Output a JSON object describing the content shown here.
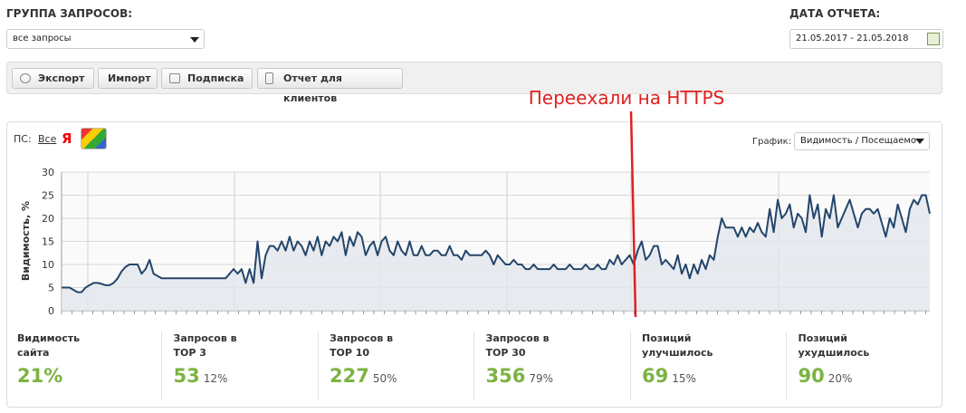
{
  "header": {
    "group_label": "ГРУППА ЗАПРОСОВ:",
    "group_value": "все запросы",
    "date_label": "ДАТА ОТЧЕТА:",
    "date_value": "21.05.2017 - 21.05.2018"
  },
  "toolbar": {
    "buttons": [
      "Экспорт",
      "Импорт",
      "Подписка",
      "Отчет для клиентов"
    ]
  },
  "annotation": "Переехали на HTTPS",
  "filters": {
    "ps_label": "ПС:",
    "all": "Все",
    "yandex": "Я",
    "graph_label": "График:",
    "graph_value": "Видимость / Посещаемо"
  },
  "chart_data": {
    "type": "line",
    "ylabel": "Видимость, %",
    "ylim": [
      0,
      30
    ],
    "yticks": [
      0,
      5,
      10,
      15,
      20,
      25,
      30
    ],
    "grid": true,
    "series": [
      {
        "color": "#24456a",
        "values": [
          5,
          5,
          5,
          4.5,
          4,
          4,
          5,
          5.5,
          6,
          6,
          5.8,
          5.5,
          5.5,
          6,
          7,
          8.5,
          9.5,
          10,
          10,
          10,
          8,
          9,
          11,
          8,
          7.5,
          7,
          7,
          7,
          7,
          7,
          7,
          7,
          7,
          7,
          7,
          7,
          7,
          7,
          7,
          7,
          7,
          7,
          8,
          9,
          8,
          9,
          6,
          9,
          6,
          15,
          7,
          12,
          14,
          14,
          13,
          15,
          13,
          16,
          13,
          15,
          14,
          12,
          15,
          13,
          16,
          12,
          15,
          14,
          16,
          15,
          17,
          12,
          16,
          14,
          17,
          16,
          12,
          14,
          15,
          12,
          15,
          16,
          13,
          12,
          15,
          13,
          12,
          15,
          12,
          12,
          14,
          12,
          12,
          13,
          13,
          12,
          12,
          14,
          12,
          12,
          11,
          13,
          12,
          12,
          12,
          12,
          13,
          12,
          10,
          12,
          11,
          10,
          10,
          11,
          10,
          10,
          9,
          9,
          10,
          9,
          9,
          9,
          9,
          10,
          9,
          9,
          9,
          10,
          9,
          9,
          9,
          10,
          9,
          9,
          10,
          9,
          9,
          11,
          10,
          12,
          10,
          11,
          12,
          10,
          13,
          15,
          11,
          12,
          14,
          14,
          10,
          11,
          10,
          9,
          12,
          8,
          10,
          7,
          10,
          8,
          11,
          9,
          12,
          11,
          16,
          20,
          18,
          18,
          18,
          16,
          18,
          16,
          18,
          17,
          19,
          17,
          16,
          22,
          17,
          24,
          20,
          21,
          23,
          18,
          21,
          20,
          17,
          25,
          20,
          23,
          16,
          22,
          20,
          25,
          18,
          20,
          22,
          24,
          21,
          18,
          21,
          22,
          22,
          21,
          22,
          19,
          16,
          20,
          18,
          23,
          20,
          17,
          22,
          24,
          23,
          25,
          25,
          21
        ]
      }
    ]
  },
  "stats": [
    {
      "label_lines": [
        "Видимость",
        "сайта"
      ],
      "value": "21%"
    },
    {
      "label_lines": [
        "Запросов в",
        "TOP 3"
      ],
      "value": "53",
      "pct": "12%"
    },
    {
      "label_lines": [
        "Запросов в",
        "TOP 10"
      ],
      "value": "227",
      "pct": "50%"
    },
    {
      "label_lines": [
        "Запросов в",
        "TOP 30"
      ],
      "value": "356",
      "pct": "79%"
    },
    {
      "label_lines": [
        "Позиций",
        "улучшилось"
      ],
      "value": "69",
      "pct": "15%"
    },
    {
      "label_lines": [
        "Позиций",
        "ухудшилось"
      ],
      "value": "90",
      "pct": "20%"
    }
  ]
}
